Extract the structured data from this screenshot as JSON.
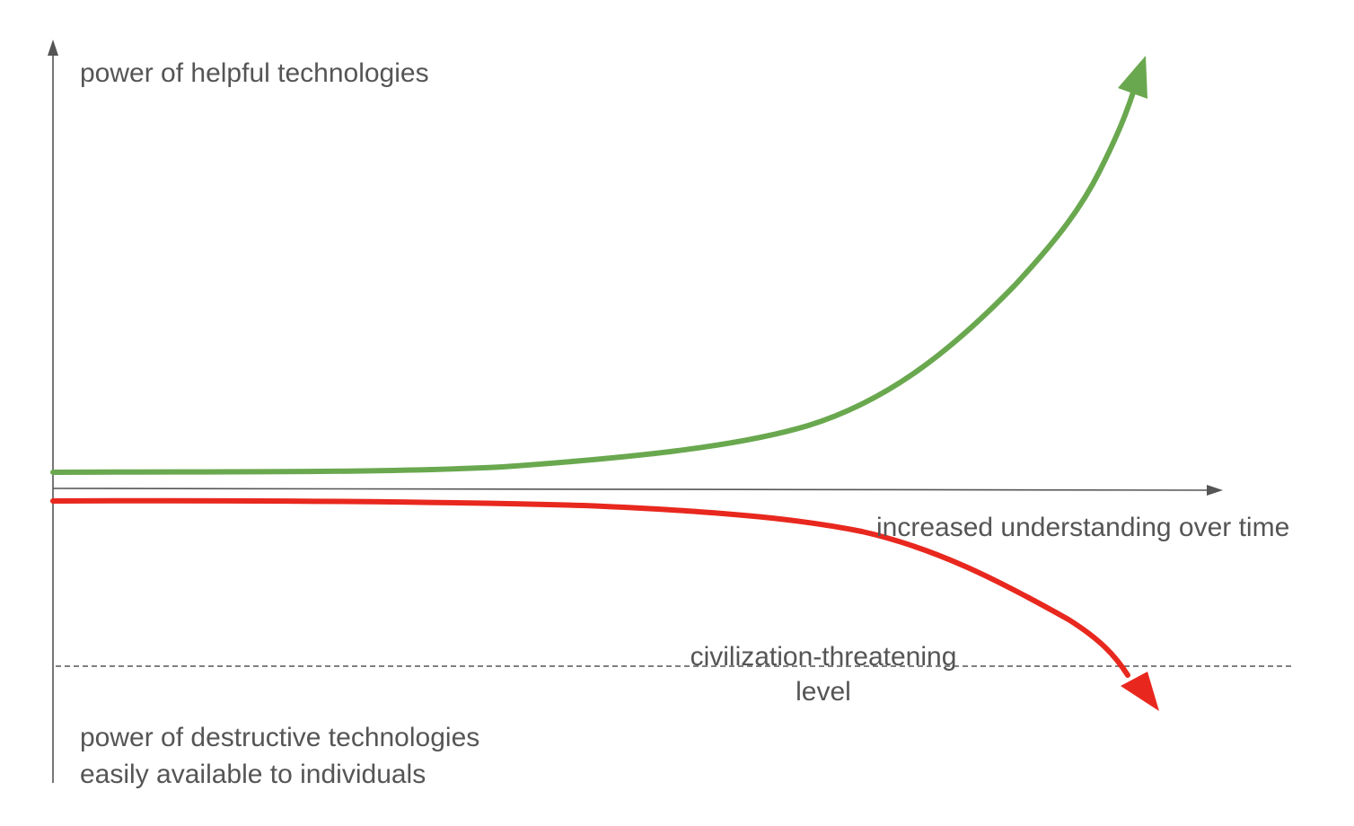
{
  "labels": {
    "y_axis_top": "power of helpful technologies",
    "x_axis": "increased understanding over time",
    "y_axis_bottom_line1": "power of destructive technologies",
    "y_axis_bottom_line2": "easily available to individuals",
    "threshold_line1": "civilization-threatening",
    "threshold_line2": "level"
  },
  "colors": {
    "helpful_curve": "#6aa84f",
    "destructive_curve": "#e8281e",
    "axes": "#555555",
    "threshold": "#555555"
  }
}
